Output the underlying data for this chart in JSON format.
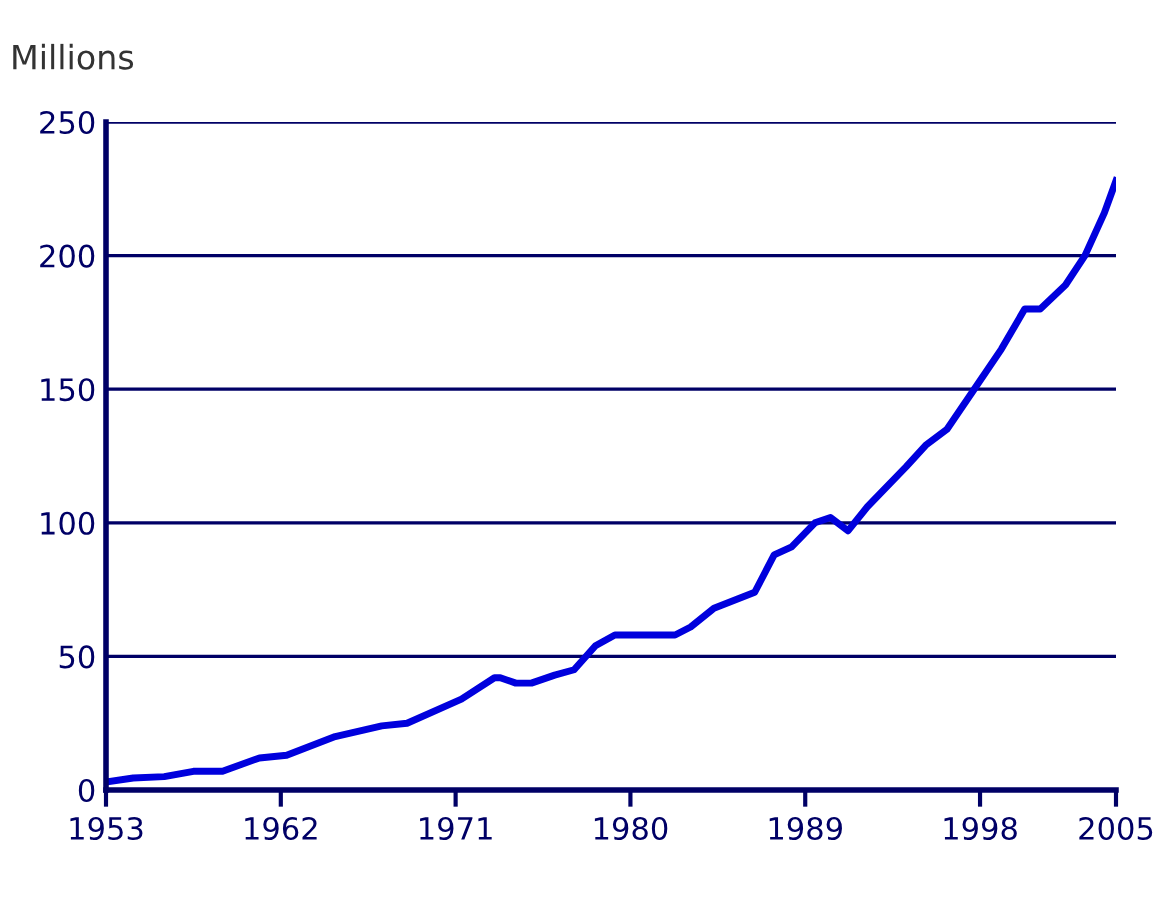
{
  "chart_data": {
    "type": "line",
    "ylabel": "Millions",
    "x": [
      1953,
      1954.4,
      1956,
      1957.5,
      1959,
      1960.9,
      1962.3,
      1964.8,
      1967.2,
      1968.5,
      1971.3,
      1973,
      1973.3,
      1974.1,
      1974.9,
      1976.1,
      1977.1,
      1978.2,
      1979.2,
      1982.3,
      1983.1,
      1984.3,
      1986.4,
      1987.4,
      1988.3,
      1989.5,
      1990.3,
      1991.2,
      1992.2,
      1994.2,
      1995.2,
      1996.3,
      1997.7,
      1999.1,
      2000.3,
      2001.1,
      2002.4,
      2003.4,
      2004.4,
      2005
    ],
    "series": [
      {
        "color": "#0000dd",
        "values": [
          3,
          4.5,
          5,
          7,
          7,
          12,
          13,
          20,
          24,
          25,
          34,
          42,
          42,
          40,
          40,
          43,
          45,
          54,
          58,
          58,
          61,
          68,
          74,
          88,
          91,
          100,
          102,
          97,
          106,
          121,
          129,
          135,
          150,
          165,
          180,
          180,
          189,
          200,
          216,
          228
        ]
      }
    ],
    "xlim": [
      1953,
      2005
    ],
    "xticks": [
      1953,
      1962,
      1971,
      1980,
      1989,
      1998,
      2005
    ],
    "ylim": [
      0,
      250
    ],
    "yticks": [
      0,
      50,
      100,
      150,
      200,
      250
    ],
    "grid": "y",
    "marker": "none",
    "line_style": "solid"
  }
}
